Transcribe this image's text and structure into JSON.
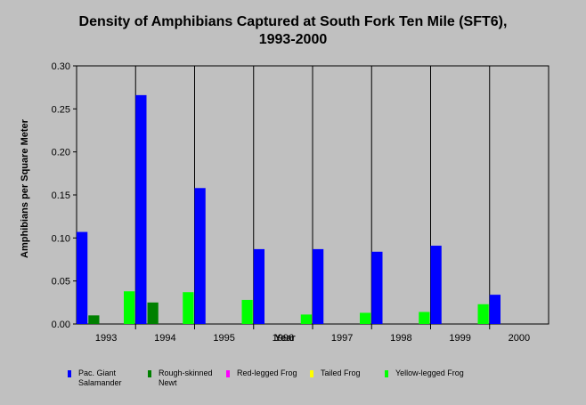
{
  "chart_data": {
    "type": "bar",
    "title_lines": [
      "Density of Amphibians Captured at South Fork Ten Mile (SFT6),",
      "1993-2000"
    ],
    "xlabel": "Year",
    "ylabel": "Amphibians per Square Meter",
    "categories": [
      "1993",
      "1994",
      "1995",
      "1996",
      "1997",
      "1998",
      "1999",
      "2000"
    ],
    "ylim": [
      0,
      0.3
    ],
    "yticks": [
      "0.00",
      "0.05",
      "0.10",
      "0.15",
      "0.20",
      "0.25",
      "0.30"
    ],
    "grid": "vertical-separators",
    "legend_position": "bottom",
    "series": [
      {
        "name": "Pac. Giant Salamander",
        "name_lines": [
          "Pac. Giant",
          "Salamander"
        ],
        "color": "#0000ff",
        "values": [
          0.107,
          0.266,
          0.158,
          0.087,
          0.087,
          0.084,
          0.091,
          0.034
        ]
      },
      {
        "name": "Rough-skinned Newt",
        "name_lines": [
          "Rough-skinned",
          "Newt"
        ],
        "color": "#008000",
        "values": [
          0.01,
          0.025,
          0,
          0,
          0,
          0,
          0,
          0
        ]
      },
      {
        "name": "Red-legged Frog",
        "name_lines": [
          "Red-legged Frog"
        ],
        "color": "#ff00ff",
        "values": [
          0,
          0,
          0,
          0,
          0,
          0,
          0,
          0
        ]
      },
      {
        "name": "Tailed Frog",
        "name_lines": [
          "Tailed Frog"
        ],
        "color": "#ffff00",
        "values": [
          0,
          0,
          0,
          0,
          0,
          0,
          0,
          0
        ]
      },
      {
        "name": "Yellow-legged Frog",
        "name_lines": [
          "Yellow-legged Frog"
        ],
        "color": "#00ff00",
        "values": [
          0.038,
          0.037,
          0.028,
          0.011,
          0.013,
          0.014,
          0.023,
          0
        ]
      }
    ]
  }
}
